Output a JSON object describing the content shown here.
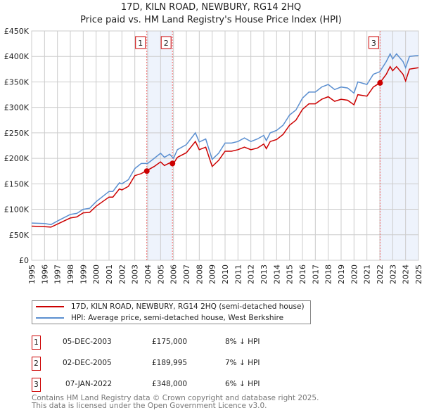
{
  "chart_data": {
    "type": "line",
    "title": "17D, KILN ROAD, NEWBURY, RG14 2HQ",
    "subtitle": "Price paid vs. HM Land Registry's House Price Index (HPI)",
    "xlim": [
      1995,
      2025
    ],
    "ylim": [
      0,
      450000
    ],
    "x_ticks": [
      "1995",
      "1996",
      "1997",
      "1998",
      "1999",
      "2000",
      "2001",
      "2002",
      "2003",
      "2004",
      "2005",
      "2006",
      "2007",
      "2008",
      "2009",
      "2010",
      "2011",
      "2012",
      "2013",
      "2014",
      "2015",
      "2016",
      "2017",
      "2018",
      "2019",
      "2020",
      "2021",
      "2022",
      "2023",
      "2024",
      "2025"
    ],
    "y_ticks": [
      {
        "v": 0,
        "label": "£0"
      },
      {
        "v": 50000,
        "label": "£50K"
      },
      {
        "v": 100000,
        "label": "£100K"
      },
      {
        "v": 150000,
        "label": "£150K"
      },
      {
        "v": 200000,
        "label": "£200K"
      },
      {
        "v": 250000,
        "label": "£250K"
      },
      {
        "v": 300000,
        "label": "£300K"
      },
      {
        "v": 350000,
        "label": "£350K"
      },
      {
        "v": 400000,
        "label": "£400K"
      },
      {
        "v": 450000,
        "label": "£450K"
      }
    ],
    "grid": true,
    "x": [
      1995,
      1996,
      1996.5,
      1997,
      1998,
      1998.5,
      1999,
      1999.5,
      2000,
      2001,
      2001.3,
      2001.8,
      2002,
      2002.5,
      2003,
      2003.5,
      2004,
      2004.5,
      2005,
      2005.3,
      2005.7,
      2006,
      2006.3,
      2007,
      2007.7,
      2008,
      2008.5,
      2009,
      2009.5,
      2010,
      2010.5,
      2011,
      2011.5,
      2012,
      2012.5,
      2013,
      2013.2,
      2013.5,
      2014,
      2014.5,
      2015,
      2015.5,
      2016,
      2016.5,
      2017,
      2017.5,
      2018,
      2018.5,
      2019,
      2019.5,
      2020,
      2020.3,
      2021,
      2021.5,
      2022,
      2022.5,
      2022.8,
      2023,
      2023.3,
      2023.8,
      2024,
      2024.3,
      2025
    ],
    "series": [
      {
        "name": "17D, KILN ROAD, NEWBURY, RG14 2HQ (semi-detached house)",
        "color": "#cc0000",
        "values": [
          67,
          66,
          65,
          71,
          83,
          85,
          93,
          94,
          106,
          124,
          124,
          140,
          138,
          145,
          166,
          170,
          177,
          184,
          193,
          186,
          191,
          190,
          202,
          211,
          233,
          217,
          222,
          184,
          196,
          214,
          214,
          217,
          222,
          217,
          220,
          228,
          219,
          233,
          237,
          247,
          265,
          275,
          296,
          307,
          307,
          316,
          321,
          312,
          316,
          314,
          305,
          325,
          322,
          340,
          348,
          365,
          380,
          372,
          380,
          365,
          352,
          375,
          378
        ]
      },
      {
        "name": "HPI: Average price, semi-detached house, West Berkshire",
        "color": "#5b8fd0",
        "values": [
          73,
          72,
          70,
          77,
          90,
          92,
          100,
          102,
          115,
          135,
          135,
          152,
          150,
          158,
          180,
          190,
          190,
          200,
          210,
          202,
          208,
          200,
          217,
          227,
          250,
          232,
          238,
          198,
          210,
          230,
          230,
          233,
          240,
          233,
          238,
          245,
          235,
          250,
          255,
          265,
          285,
          295,
          318,
          330,
          330,
          340,
          345,
          335,
          340,
          338,
          328,
          350,
          345,
          365,
          370,
          390,
          405,
          395,
          405,
          390,
          378,
          400,
          402
        ]
      }
    ],
    "value_unit": "thousand GBP",
    "sales": [
      {
        "id": "1",
        "x": 2003.93,
        "price": 175000,
        "date": "05-DEC-2003",
        "price_label": "£175,000",
        "delta": "8% ↓ HPI"
      },
      {
        "id": "2",
        "x": 2005.92,
        "price": 189995,
        "date": "02-DEC-2005",
        "price_label": "£189,995",
        "delta": "7% ↓ HPI"
      },
      {
        "id": "3",
        "x": 2022.02,
        "price": 348000,
        "date": "07-JAN-2022",
        "price_label": "£348,000",
        "delta": "6% ↓ HPI"
      }
    ],
    "legend_position": "below"
  },
  "footer": {
    "line1": "Contains HM Land Registry data © Crown copyright and database right 2025.",
    "line2": "This data is licensed under the Open Government Licence v3.0."
  }
}
